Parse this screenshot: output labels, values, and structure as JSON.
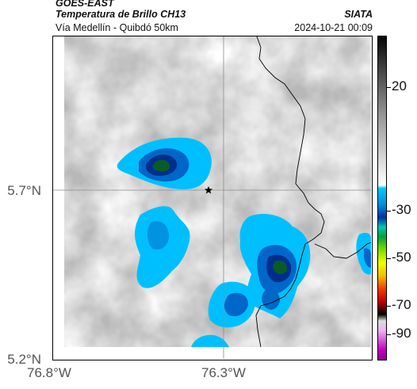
{
  "header": {
    "satellite": "GOES-EAST",
    "product": "Temperatura de Brillo CH13",
    "region": "Vía Medellín - Quibdó 50km",
    "source": "SIATA",
    "datetime": "2024-10-21 00:09"
  },
  "axes": {
    "lat_labels": [
      {
        "value": 5.7,
        "label": "5.7°N"
      },
      {
        "value": 5.2,
        "label": "5.2°N"
      }
    ],
    "lon_labels": [
      {
        "value": -76.8,
        "label": "76.8°W"
      },
      {
        "value": -76.3,
        "label": "76.3°W"
      }
    ]
  },
  "colorbar": {
    "labels": [
      "20",
      "-30",
      "-50",
      "-70",
      "-90"
    ]
  },
  "map": {
    "gridlines": true,
    "marker": "star",
    "colors": {
      "warm_background": "#b8b8b8",
      "cold_cloud_cyan": "#00bfff",
      "cold_cloud_blue": "#0066c8",
      "cold_cloud_dark": "#002e8c",
      "cold_core_green": "#0a5a2a",
      "border_line": "#000000"
    }
  }
}
